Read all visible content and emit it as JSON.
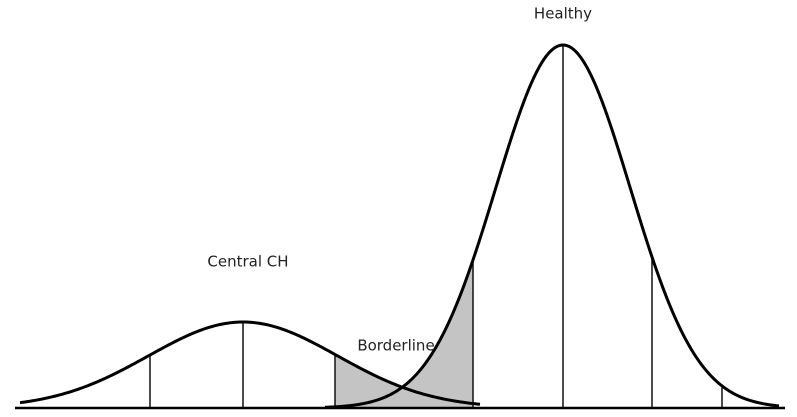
{
  "labels": {
    "healthy": "Healthy",
    "central": "Central CH",
    "borderline": "Borderline"
  }
}
